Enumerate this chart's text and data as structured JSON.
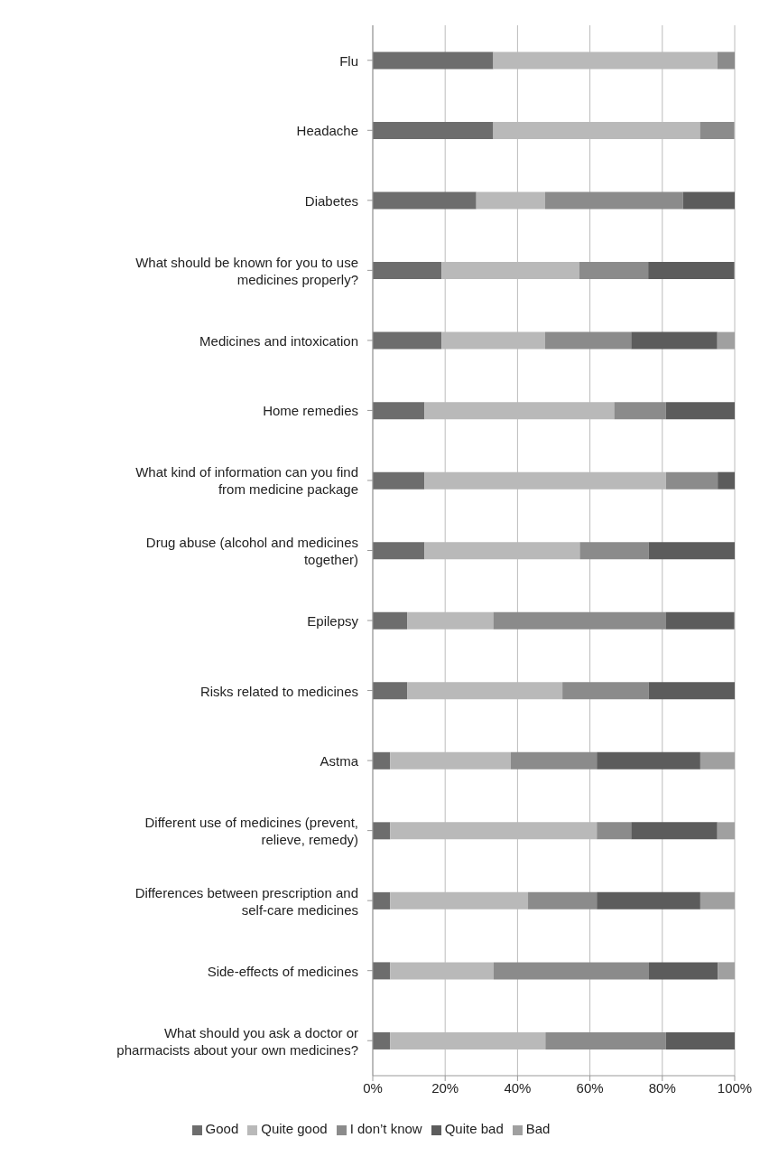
{
  "chart_data": {
    "type": "bar",
    "orientation": "horizontal",
    "stacked": true,
    "categories": [
      "Flu",
      "Headache",
      "Diabetes",
      "What should be known for you to use medicines properly?",
      "Medicines and intoxication",
      "Home remedies",
      "What kind of information can you find from medicine package",
      "Drug abuse (alcohol and medicines together)",
      "Epilepsy",
      "Risks related to medicines",
      "Astma",
      "Different use of medicines (prevent, relieve, remedy)",
      "Differences between prescription and self-care medicines",
      "Side-effects of medicines",
      "What should you ask a doctor or pharmacists about your own medicines?"
    ],
    "series": [
      {
        "name": "Good",
        "color": "#6d6d6d",
        "values": [
          33.3,
          33.3,
          28.6,
          19.0,
          19.0,
          14.3,
          14.3,
          14.3,
          9.5,
          9.5,
          4.8,
          4.8,
          4.8,
          4.8,
          4.8
        ]
      },
      {
        "name": "Quite good",
        "color": "#b9b9b9",
        "values": [
          61.9,
          57.1,
          19.0,
          38.1,
          28.6,
          52.4,
          66.7,
          42.9,
          23.8,
          42.9,
          33.3,
          57.1,
          38.1,
          28.6,
          42.9
        ]
      },
      {
        "name": "I don’t know",
        "color": "#8b8b8b",
        "values": [
          4.8,
          9.5,
          38.1,
          19.0,
          23.8,
          14.3,
          14.3,
          19.0,
          47.6,
          23.8,
          23.8,
          9.5,
          19.0,
          42.9,
          33.3
        ]
      },
      {
        "name": "Quite bad",
        "color": "#5c5c5c",
        "values": [
          0,
          0,
          14.3,
          23.8,
          23.8,
          19.0,
          4.8,
          23.8,
          19.0,
          23.8,
          28.6,
          23.8,
          28.6,
          19.0,
          19.0
        ]
      },
      {
        "name": "Bad",
        "color": "#a0a0a0",
        "values": [
          0,
          0,
          0,
          0,
          4.8,
          0,
          0,
          0,
          0,
          0,
          9.5,
          4.8,
          9.5,
          4.8,
          0
        ]
      }
    ],
    "xlim": [
      0,
      100
    ],
    "xticks": [
      {
        "value": 0,
        "label": "0%"
      },
      {
        "value": 20,
        "label": "20%"
      },
      {
        "value": 40,
        "label": "40%"
      },
      {
        "value": 60,
        "label": "60%"
      },
      {
        "value": 80,
        "label": "80%"
      },
      {
        "value": 100,
        "label": "100%"
      }
    ],
    "grid": "x",
    "legend": "bottom"
  }
}
